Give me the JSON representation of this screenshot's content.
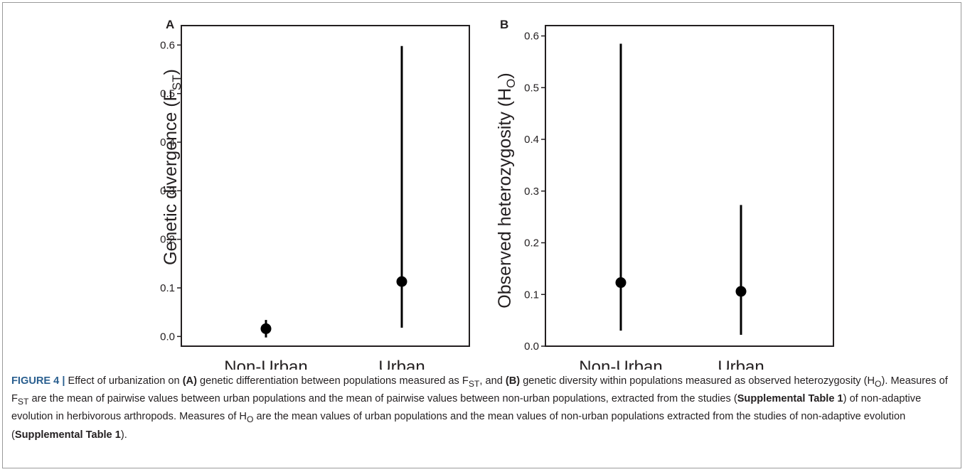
{
  "chart_data": [
    {
      "type": "scatter",
      "panel_label": "A",
      "ylabel": "Genetic divergence (F",
      "ylabel_sub": "ST",
      "ylabel_close": ")",
      "categories": [
        "Non-Urban",
        "Urban"
      ],
      "ylim": [
        -0.02,
        0.64
      ],
      "yticks": [
        "0.0",
        "0.1",
        "0.2",
        "0.3",
        "0.4",
        "0.5",
        "0.6"
      ],
      "grid": false,
      "series": [
        {
          "points": [
            {
              "category": "Non-Urban",
              "mean": 0.016,
              "low": -0.002,
              "high": 0.034
            },
            {
              "category": "Urban",
              "mean": 0.113,
              "low": 0.018,
              "high": 0.598
            }
          ]
        }
      ]
    },
    {
      "type": "scatter",
      "panel_label": "B",
      "ylabel": "Observed heterozygosity (H",
      "ylabel_sub": "O",
      "ylabel_close": ")",
      "categories": [
        "Non-Urban",
        "Urban"
      ],
      "ylim": [
        0.0,
        0.62
      ],
      "yticks": [
        "0.0",
        "0.1",
        "0.2",
        "0.3",
        "0.4",
        "0.5",
        "0.6"
      ],
      "grid": false,
      "series": [
        {
          "points": [
            {
              "category": "Non-Urban",
              "mean": 0.123,
              "low": 0.03,
              "high": 0.585
            },
            {
              "category": "Urban",
              "mean": 0.106,
              "low": 0.022,
              "high": 0.273
            }
          ]
        }
      ]
    }
  ],
  "caption": {
    "lead": "FIGURE 4 |",
    "t1": " Effect of urbanization on ",
    "a": "(A)",
    "t2": " genetic differentiation between populations measured as F",
    "fst_sub": "ST",
    "t3": ", and ",
    "b": "(B)",
    "t4": " genetic diversity within populations measured as observed heterozygosity (H",
    "ho_sub": "O",
    "t5": "). Measures of F",
    "fst_sub2": "ST",
    "t6": " are the mean of pairwise values between urban populations and the mean of pairwise values between non-urban populations, extracted from the studies (",
    "supp1": "Supplemental Table 1",
    "t7": ") of non-adaptive evolution in herbivorous arthropods. Measures of H",
    "ho_sub2": "O",
    "t8": " are the mean values of urban populations and the mean values of non-urban populations extracted from the studies of non-adaptive evolution (",
    "supp2": "Supplemental Table 1",
    "t9": ")."
  }
}
